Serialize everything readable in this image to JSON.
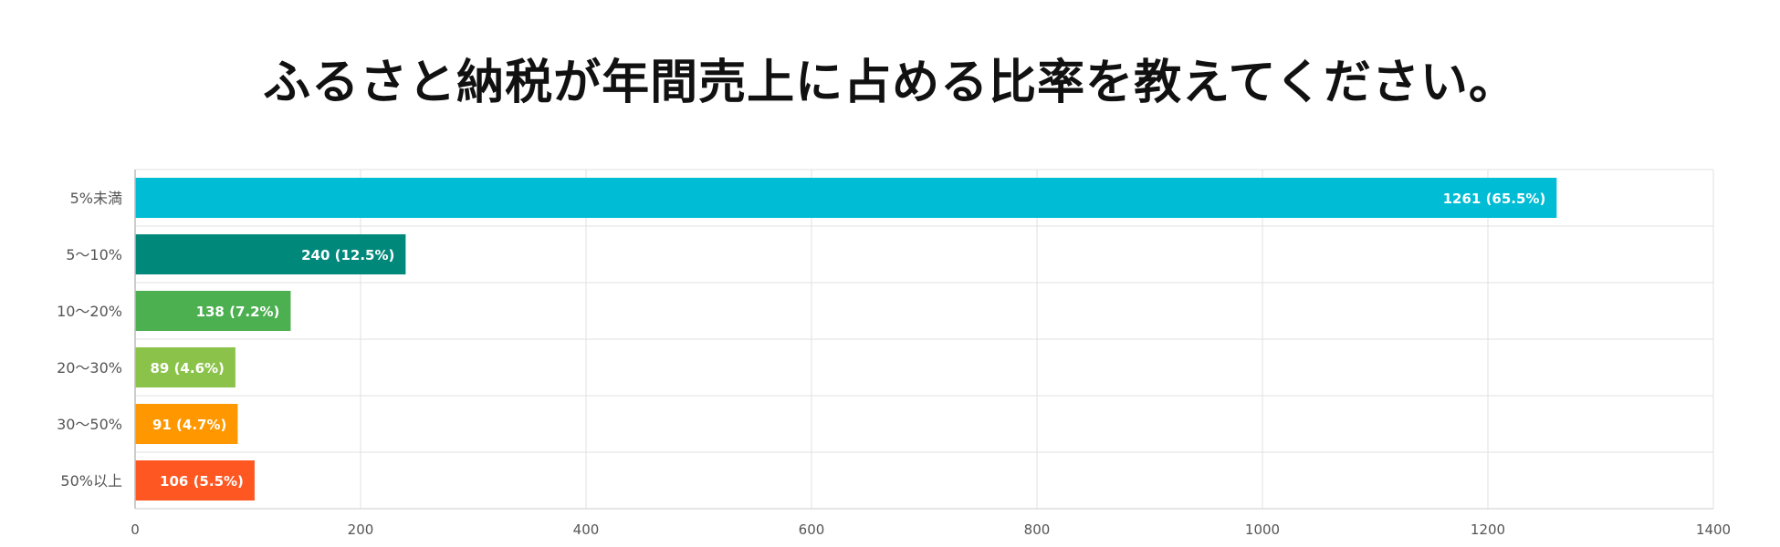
{
  "chart_data": {
    "type": "bar",
    "orientation": "horizontal",
    "title": "ふるさと納税が年間売上に占める比率を教えてください。",
    "categories": [
      "5%未満",
      "5〜10%",
      "10〜20%",
      "20〜30%",
      "30〜50%",
      "50%以上"
    ],
    "values": [
      1261,
      240,
      138,
      89,
      91,
      106
    ],
    "data_labels": [
      "1261 (65.5%)",
      "240 (12.5%)",
      "138 (7.2%)",
      "89 (4.6%)",
      "91 (4.7%)",
      "106 (5.5%)"
    ],
    "colors": [
      "#00BCD4",
      "#00897B",
      "#4CAF50",
      "#8BC34A",
      "#FF9800",
      "#FF5722"
    ],
    "xlim": [
      0,
      1400
    ],
    "xticks": [
      0,
      200,
      400,
      600,
      800,
      1000,
      1200,
      1400
    ],
    "grid": true,
    "legend": "none"
  }
}
